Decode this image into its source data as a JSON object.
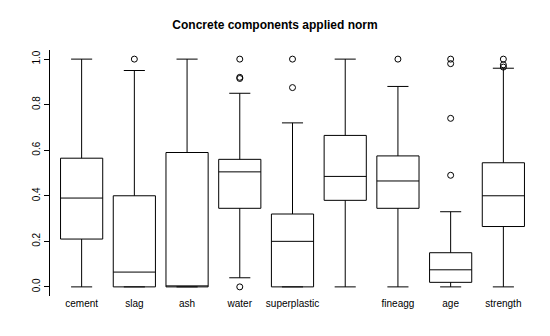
{
  "chart_data": {
    "type": "box",
    "title": "Concrete components applied norm",
    "categories": [
      "cement",
      "slag",
      "ash",
      "water",
      "superplastic",
      null,
      "fineagg",
      "age",
      "strength"
    ],
    "boxes": [
      {
        "lower": 0.0,
        "q1": 0.21,
        "median": 0.39,
        "q3": 0.565,
        "upper": 1.0,
        "outliers": []
      },
      {
        "lower": 0.0,
        "q1": 0.0,
        "median": 0.065,
        "q3": 0.4,
        "upper": 0.95,
        "outliers": [
          1.0
        ]
      },
      {
        "lower": 0.0,
        "q1": 0.0,
        "median": 0.0,
        "q3": 0.59,
        "upper": 1.0,
        "outliers": []
      },
      {
        "lower": 0.04,
        "q1": 0.345,
        "median": 0.505,
        "q3": 0.56,
        "upper": 0.85,
        "outliers": [
          0.0,
          0.915,
          0.92,
          1.0
        ]
      },
      {
        "lower": 0.0,
        "q1": 0.0,
        "median": 0.2,
        "q3": 0.32,
        "upper": 0.72,
        "outliers": [
          0.875,
          1.0
        ]
      },
      {
        "lower": 0.0,
        "q1": 0.38,
        "median": 0.485,
        "q3": 0.665,
        "upper": 1.0,
        "outliers": []
      },
      {
        "lower": 0.0,
        "q1": 0.345,
        "median": 0.465,
        "q3": 0.575,
        "upper": 0.88,
        "outliers": [
          1.0
        ]
      },
      {
        "lower": 0.0,
        "q1": 0.02,
        "median": 0.075,
        "q3": 0.15,
        "upper": 0.33,
        "outliers": [
          0.49,
          0.74,
          0.98,
          1.0
        ]
      },
      {
        "lower": 0.0,
        "q1": 0.265,
        "median": 0.4,
        "q3": 0.545,
        "upper": 0.96,
        "outliers": [
          0.965,
          0.975,
          1.0
        ]
      }
    ],
    "color": "#000000",
    "ylim": [
      -0.04,
      1.04
    ],
    "yticks": [
      {
        "value": 0,
        "label": "0.0"
      },
      0.2,
      0.4,
      0.6,
      0.8,
      {
        "value": 1,
        "label": "1.0"
      }
    ],
    "grid": false
  }
}
